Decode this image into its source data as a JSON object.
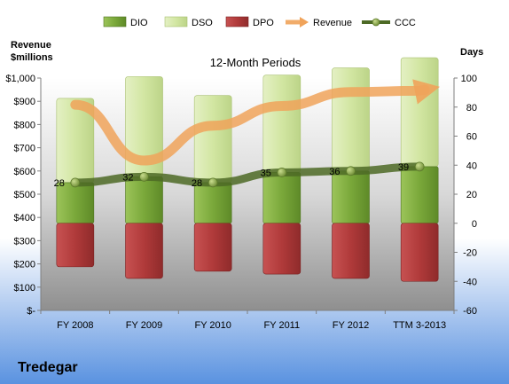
{
  "chart_data": {
    "type": "bar",
    "title": "12-Month Periods",
    "company": "Tredegar",
    "left_axis": {
      "label_line1": "Revenue",
      "label_line2": "$millions",
      "ylim": [
        0,
        1000
      ],
      "ticks": [
        0,
        100,
        200,
        300,
        400,
        500,
        600,
        700,
        800,
        900,
        1000
      ],
      "tick_labels": [
        "$-",
        "$100",
        "$200",
        "$300",
        "$400",
        "$500",
        "$600",
        "$700",
        "$800",
        "$900",
        "$1,000"
      ]
    },
    "right_axis": {
      "label": "Days",
      "ylim": [
        -60,
        100
      ],
      "ticks": [
        -60,
        -40,
        -20,
        0,
        20,
        40,
        60,
        80,
        100
      ],
      "tick_labels": [
        "-60",
        "-40",
        "-20",
        "0",
        "20",
        "40",
        "60",
        "80",
        "100"
      ]
    },
    "categories": [
      "FY 2008",
      "FY 2009",
      "FY 2010",
      "FY 2011",
      "FY 2012",
      "TTM 3-2013"
    ],
    "series": [
      {
        "name": "DIO",
        "axis": "days",
        "stack": "stacked-bar",
        "color": "#7aa83a",
        "values": [
          28,
          32,
          28,
          35,
          36,
          39
        ]
      },
      {
        "name": "DSO",
        "axis": "days",
        "stack": "stacked-bar",
        "color": "#cfe39a",
        "values": [
          58,
          69,
          60,
          67,
          71,
          75
        ]
      },
      {
        "name": "DPO",
        "axis": "days",
        "stack": "negative-bar",
        "color": "#b03a3a",
        "values": [
          -30,
          -38,
          -33,
          -35,
          -38,
          -40
        ]
      },
      {
        "name": "Revenue",
        "axis": "revenue",
        "type": "line",
        "color": "#f0a35a",
        "values": [
          885,
          645,
          795,
          880,
          940,
          945
        ]
      },
      {
        "name": "CCC",
        "axis": "days",
        "type": "line",
        "color": "#5d7a32",
        "values": [
          28,
          32,
          28,
          35,
          36,
          39
        ]
      }
    ],
    "data_labels": [
      "28",
      "32",
      "28",
      "35",
      "36",
      "39"
    ],
    "legend_position": "top",
    "grid": false
  }
}
